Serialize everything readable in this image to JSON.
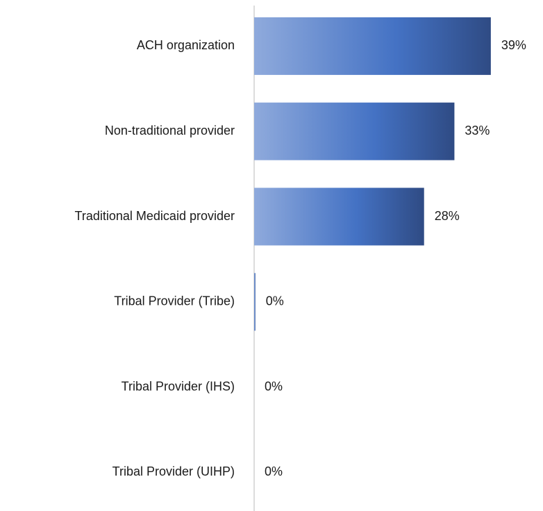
{
  "chart_data": {
    "type": "bar",
    "orientation": "horizontal",
    "categories": [
      "ACH organization",
      "Non-traditional provider",
      "Traditional Medicaid provider",
      "Tribal Provider (Tribe)",
      "Tribal Provider (IHS)",
      "Tribal Provider (UIHP)"
    ],
    "values": [
      39,
      33,
      28,
      0.2,
      0,
      0
    ],
    "value_labels": [
      "39%",
      "33%",
      "28%",
      "0%",
      "0%",
      "0%"
    ],
    "color": "#4472c4"
  }
}
